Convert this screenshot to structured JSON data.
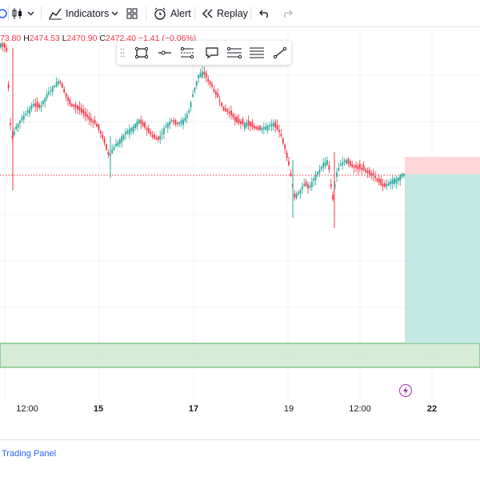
{
  "toolbar": {
    "indicators_label": "Indicators",
    "alert_label": "Alert",
    "replay_label": "Replay"
  },
  "legend": {
    "open_partial": "73.80",
    "high_key": "H",
    "high": "2474.53",
    "low_key": "L",
    "low": "2470.90",
    "close_key": "C",
    "close": "2472.40",
    "change": "−1.41 (−0.06%)"
  },
  "time_axis": {
    "ticks": [
      "12:00",
      "15",
      "17",
      "19",
      "12:00",
      "22"
    ],
    "bold": [
      false,
      true,
      true,
      false,
      false,
      true
    ]
  },
  "bottom": {
    "trading_panel_label": "Trading Panel"
  },
  "colors": {
    "up": "#26a69a",
    "down": "#f23645",
    "target_zone": "#b2dfdb",
    "stop_zone": "#ffcdd2",
    "green_zone": "#c8e6c9",
    "accent": "#2962ff"
  },
  "drawing_tools": [
    "rectangle-icon",
    "horizontal-ray-icon",
    "parallel-channel-icon",
    "callout-icon",
    "fib-retracement-icon",
    "fib-levels-icon",
    "trend-line-icon"
  ]
}
